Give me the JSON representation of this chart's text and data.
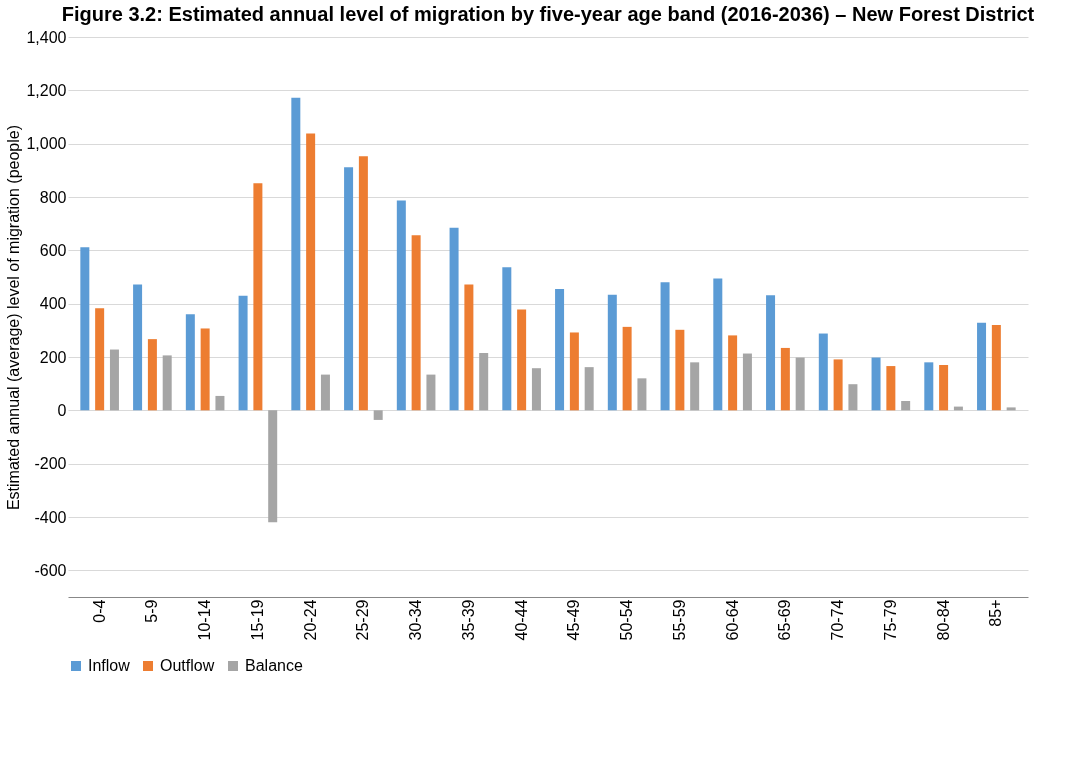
{
  "chart_data": {
    "type": "bar",
    "title": "Figure 3.2: Estimated annual level of migration by five-year age band (2016-2036) – New Forest District",
    "ylabel": "Estimated annual (average) level of migration (people)",
    "categories": [
      "0-4",
      "5-9",
      "10-14",
      "15-19",
      "20-24",
      "25-29",
      "30-34",
      "35-39",
      "40-44",
      "45-49",
      "50-54",
      "55-59",
      "60-64",
      "65-69",
      "70-74",
      "75-79",
      "80-84",
      "85+"
    ],
    "series": [
      {
        "name": "Inflow",
        "color": "#5b9bd5",
        "values": [
          612,
          472,
          360,
          430,
          1172,
          912,
          787,
          685,
          537,
          455,
          433,
          480,
          494,
          432,
          288,
          198,
          180,
          328
        ]
      },
      {
        "name": "Outflow",
        "color": "#ed7d31",
        "values": [
          383,
          267,
          307,
          852,
          1038,
          953,
          657,
          472,
          378,
          292,
          313,
          302,
          281,
          234,
          191,
          166,
          170,
          320
        ]
      },
      {
        "name": "Balance",
        "color": "#a5a5a5",
        "values": [
          228,
          206,
          54,
          -420,
          134,
          -36,
          134,
          215,
          158,
          162,
          120,
          180,
          213,
          198,
          98,
          35,
          14,
          11
        ]
      }
    ],
    "ylim": [
      -700,
      1400
    ],
    "yticks": [
      {
        "value": -600,
        "label": "-600"
      },
      {
        "value": -400,
        "label": "-400"
      },
      {
        "value": -200,
        "label": "-200"
      },
      {
        "value": 0,
        "label": "0"
      },
      {
        "value": 200,
        "label": "200"
      },
      {
        "value": 400,
        "label": "400"
      },
      {
        "value": 600,
        "label": "600"
      },
      {
        "value": 800,
        "label": "800"
      },
      {
        "value": 1000,
        "label": "1,000"
      },
      {
        "value": 1200,
        "label": "1,200"
      },
      {
        "value": 1400,
        "label": "1,400"
      }
    ],
    "grid": "y",
    "legend": "bottom"
  }
}
